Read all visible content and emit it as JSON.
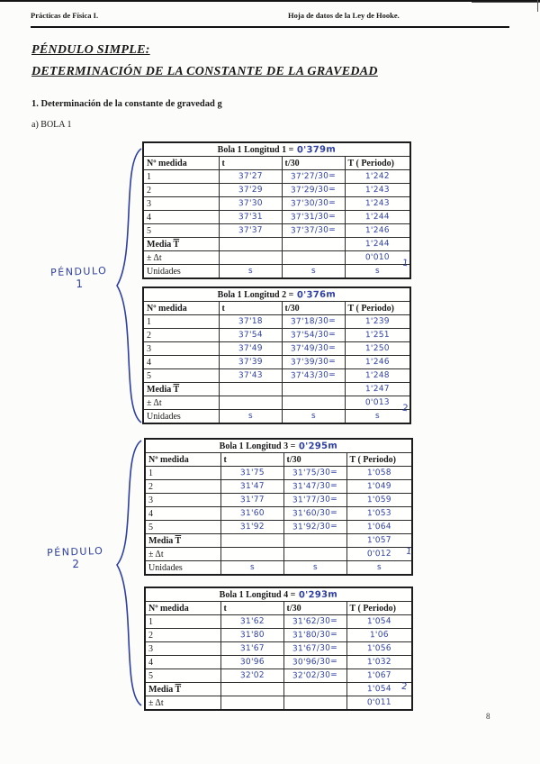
{
  "page": {
    "header_left": "Prácticas de Física I.",
    "header_right": "Hoja de datos de la Ley de Hooke.",
    "title_line1": "PÉNDULO SIMPLE:",
    "title_line2": "DETERMINACIÓN DE LA CONSTANTE DE LA GRAVEDAD",
    "section_heading": "1. Determinación de la constante de gravedad g",
    "subsection": "a) BOLA 1",
    "page_number": "8"
  },
  "margin": {
    "pendulo1_line1": "PÉNDULO",
    "pendulo1_line2": "1",
    "pendulo2_line1": "PÉNDULO",
    "pendulo2_line2": "2"
  },
  "ink_color": "#2e3fa3",
  "tables": [
    {
      "printed_title": "Bola 1   Longitud 1 =",
      "length_value": "0'379m",
      "columns": [
        "Nº medida",
        "t",
        "t/30",
        "T ( Periodo)"
      ],
      "rows": [
        [
          "1",
          "37'27",
          "37'27/30=",
          "1'242"
        ],
        [
          "2",
          "37'29",
          "37'29/30=",
          "1'243"
        ],
        [
          "3",
          "37'30",
          "37'30/30=",
          "1'243"
        ],
        [
          "4",
          "37'31",
          "37'31/30=",
          "1'244"
        ],
        [
          "5",
          "37'37",
          "37'37/30=",
          "1'246"
        ]
      ],
      "media_label_prefix": "Media ",
      "media_symbol": "T",
      "media_value": "1'244",
      "delta_label": "± Δt",
      "delta_value": "0'010",
      "unidades_label": "Unidades",
      "unidades_values": [
        "s",
        "s",
        "s"
      ],
      "side_mark": "1"
    },
    {
      "printed_title": "Bola 1   Longitud 2 =",
      "length_value": "0'376m",
      "columns": [
        "Nº medida",
        "t",
        "t/30",
        "T ( Periodo)"
      ],
      "rows": [
        [
          "1",
          "37'18",
          "37'18/30=",
          "1'239"
        ],
        [
          "2",
          "37'54",
          "37'54/30=",
          "1'251"
        ],
        [
          "3",
          "37'49",
          "37'49/30=",
          "1'250"
        ],
        [
          "4",
          "37'39",
          "37'39/30=",
          "1'246"
        ],
        [
          "5",
          "37'43",
          "37'43/30=",
          "1'248"
        ]
      ],
      "media_label_prefix": "Media ",
      "media_symbol": "T",
      "media_value": "1'247",
      "delta_label": "± Δt",
      "delta_value": "0'013",
      "unidades_label": "Unidades",
      "unidades_values": [
        "s",
        "s",
        "s"
      ],
      "side_mark": "2"
    },
    {
      "printed_title": "Bola 1   Longitud 3 =",
      "length_value": "0'295m",
      "columns": [
        "Nº medida",
        "t",
        "t/30",
        "T ( Periodo)"
      ],
      "rows": [
        [
          "1",
          "31'75",
          "31'75/30=",
          "1'058"
        ],
        [
          "2",
          "31'47",
          "31'47/30=",
          "1'049"
        ],
        [
          "3",
          "31'77",
          "31'77/30=",
          "1'059"
        ],
        [
          "4",
          "31'60",
          "31'60/30=",
          "1'053"
        ],
        [
          "5",
          "31'92",
          "31'92/30=",
          "1'064"
        ]
      ],
      "media_label_prefix": "Media ",
      "media_symbol": "T",
      "media_value": "1'057",
      "delta_label": "± Δt",
      "delta_value": "0'012",
      "unidades_label": "Unidades",
      "unidades_values": [
        "s",
        "s",
        "s"
      ],
      "side_mark": "1"
    },
    {
      "printed_title": "Bola 1   Longitud 4 =",
      "length_value": "0'293m",
      "columns": [
        "Nº medida",
        "t",
        "t/30",
        "T ( Periodo)"
      ],
      "rows": [
        [
          "1",
          "31'62",
          "31'62/30=",
          "1'054"
        ],
        [
          "2",
          "31'80",
          "31'80/30=",
          "1'06"
        ],
        [
          "3",
          "31'67",
          "31'67/30=",
          "1'056"
        ],
        [
          "4",
          "30'96",
          "30'96/30=",
          "1'032"
        ],
        [
          "5",
          "32'02",
          "32'02/30=",
          "1'067"
        ]
      ],
      "media_label_prefix": "Media ",
      "media_symbol": "T",
      "media_value": "1'054",
      "delta_label": "± Δt",
      "delta_value": "0'011",
      "unidades_label": null,
      "unidades_values": null,
      "side_mark": "2"
    }
  ]
}
